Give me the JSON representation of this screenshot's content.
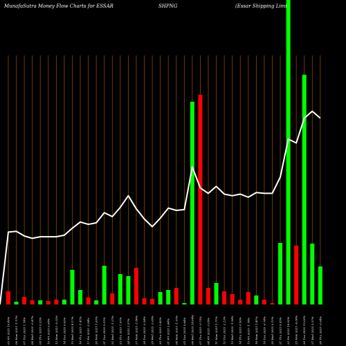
{
  "chart_data": {
    "type": "bar",
    "title_parts": [
      "MunafaSutra  Money Flow  Charts for ESSAR",
      "SHPNG",
      "(Essar Shipping Limi"
    ],
    "x_tick_labels": [
      "03 Fri 2025 10.49%",
      "06 Mon 2025 -1.11%",
      "07 Tue 2025 1.74%",
      "08 Wed 2025 -0.47%",
      "09 Thu 2025 0.25%",
      "10 Fri 2025 0.08%",
      "13 Mon 2025 -0.32%",
      "14 Tue 2025 0.63%",
      "15 Wed 2025 4.17%",
      "16 Thu 2025 -1.41%",
      "17 Fri 2025 -2.94%",
      "20 Mon 2025 1.63%",
      "21 Tue 2025 5.31%",
      "22 Wed 2025 -1.27%",
      "23 Thu 2025 1.97%",
      "24 Fri 2025 2.57%",
      "27 Mon 2025 -1.86%",
      "28 Tue 2025 -3.54%",
      "29 Wed 2025 -3.09%",
      "30 Thu 2025 3.82%",
      "01 Fri 2025 3.64%",
      "04 Mon 2025 -1.97%",
      "05 Tue 2025 0.64%",
      "06 Wed 2025 18.64%",
      "07 Thu 2025 -0.73%",
      "08 Fri 2025 -3.05%",
      "11 Mon 2025 1.71%",
      "12 Tue 2025 -2.13%",
      "13 Wed 2025 -1.54%",
      "14 Thu 2025 0.56%",
      "15 Fri 2025 -1.76%",
      "18 Mon 2025 1.41%",
      "19 Tue 2025 -0.74%",
      "20 Wed 2025 0.15%",
      "21 Thu 2025 9.95%",
      "22 Fri 2025 19.92%",
      "25 Mon 2025 -6.06%",
      "26 Tue 2025 15.00%",
      "27 Wed 2025 5.37%",
      "28 Thu 2025 -0.04%"
    ],
    "bar_colors": [
      "red",
      "green"
    ],
    "bars": [
      {
        "value": 19,
        "direction": "down"
      },
      {
        "value": 4,
        "direction": "up"
      },
      {
        "value": 11,
        "direction": "down"
      },
      {
        "value": 6,
        "direction": "down"
      },
      {
        "value": 6,
        "direction": "up"
      },
      {
        "value": 5,
        "direction": "down"
      },
      {
        "value": 7,
        "direction": "down"
      },
      {
        "value": 7,
        "direction": "up"
      },
      {
        "value": 50,
        "direction": "up"
      },
      {
        "value": 21,
        "direction": "up"
      },
      {
        "value": 10,
        "direction": "down"
      },
      {
        "value": 6,
        "direction": "up"
      },
      {
        "value": 56,
        "direction": "up"
      },
      {
        "value": 16,
        "direction": "down"
      },
      {
        "value": 44,
        "direction": "up"
      },
      {
        "value": 41,
        "direction": "up"
      },
      {
        "value": 53,
        "direction": "down"
      },
      {
        "value": 9,
        "direction": "down"
      },
      {
        "value": 8,
        "direction": "down"
      },
      {
        "value": 18,
        "direction": "up"
      },
      {
        "value": 21,
        "direction": "up"
      },
      {
        "value": 24,
        "direction": "down"
      },
      {
        "value": 2,
        "direction": "up"
      },
      {
        "value": 293,
        "direction": "up"
      },
      {
        "value": 303,
        "direction": "down"
      },
      {
        "value": 24,
        "direction": "down"
      },
      {
        "value": 31,
        "direction": "up"
      },
      {
        "value": 19,
        "direction": "down"
      },
      {
        "value": 15,
        "direction": "down"
      },
      {
        "value": 7,
        "direction": "down"
      },
      {
        "value": 18,
        "direction": "down"
      },
      {
        "value": 13,
        "direction": "up"
      },
      {
        "value": 7,
        "direction": "down"
      },
      {
        "value": 2,
        "direction": "down"
      },
      {
        "value": 89,
        "direction": "up"
      },
      {
        "value": 440,
        "direction": "up"
      },
      {
        "value": 85,
        "direction": "down"
      },
      {
        "value": 332,
        "direction": "up"
      },
      {
        "value": 88,
        "direction": "up"
      },
      {
        "value": 55,
        "direction": "up"
      }
    ],
    "line": {
      "color": "white",
      "values": [
        10.5,
        10.6,
        10.0,
        9.7,
        9.9,
        9.9,
        9.9,
        10.1,
        11.0,
        11.8,
        11.5,
        11.7,
        13.0,
        12.5,
        13.7,
        15.2,
        13.5,
        12.2,
        11.2,
        12.3,
        13.6,
        13.3,
        13.4,
        18.9,
        16.2,
        15.5,
        16.4,
        15.4,
        15.2,
        15.4,
        15.0,
        15.6,
        15.5,
        15.5,
        17.6,
        22.5,
        22.0,
        25.2,
        26.1,
        25.2
      ]
    },
    "vertical_gridlines": true,
    "gridline_color": "#8a4a00",
    "legend": "none"
  }
}
